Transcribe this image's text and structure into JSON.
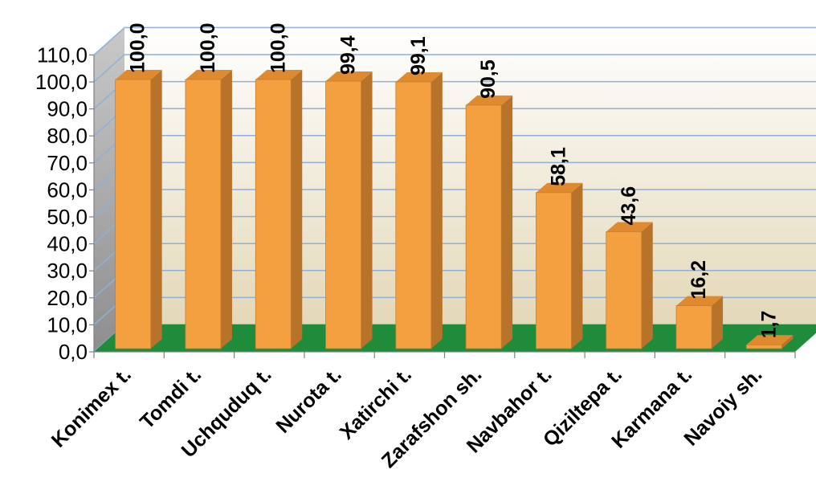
{
  "chart_data": {
    "type": "bar",
    "title": "",
    "xlabel": "",
    "ylabel": "",
    "categories": [
      "Konimex t.",
      "Tomdi t.",
      "Uchquduq t.",
      "Nurota t.",
      "Xatirchi t.",
      "Zarafshon sh.",
      "Navbahor t.",
      "Qiziltepa t.",
      "Karmana t.",
      "Navoiy sh."
    ],
    "values": [
      100.0,
      100.0,
      100.0,
      99.4,
      99.1,
      90.5,
      58.1,
      43.6,
      16.2,
      1.7
    ],
    "data_labels": [
      "100,0",
      "100,0",
      "100,0",
      "99,4",
      "99,1",
      "90,5",
      "58,1",
      "43,6",
      "16,2",
      "1,7"
    ],
    "y_ticks": [
      "0,0",
      "10,0",
      "20,0",
      "30,0",
      "40,0",
      "50,0",
      "60,0",
      "70,0",
      "80,0",
      "90,0",
      "100,0",
      "110,0"
    ],
    "ylim": [
      0,
      110
    ],
    "grid": true,
    "legend": "none",
    "style": "3d-column",
    "colors": {
      "bar_front": "#F4A040",
      "bar_side": "#B8732A",
      "bar_top": "#E08A30",
      "floor": "#1E8C3A",
      "wall_top": "#FFFFFF",
      "wall_bottom": "#E6DCBF",
      "gridline": "#8FB0D8"
    }
  }
}
